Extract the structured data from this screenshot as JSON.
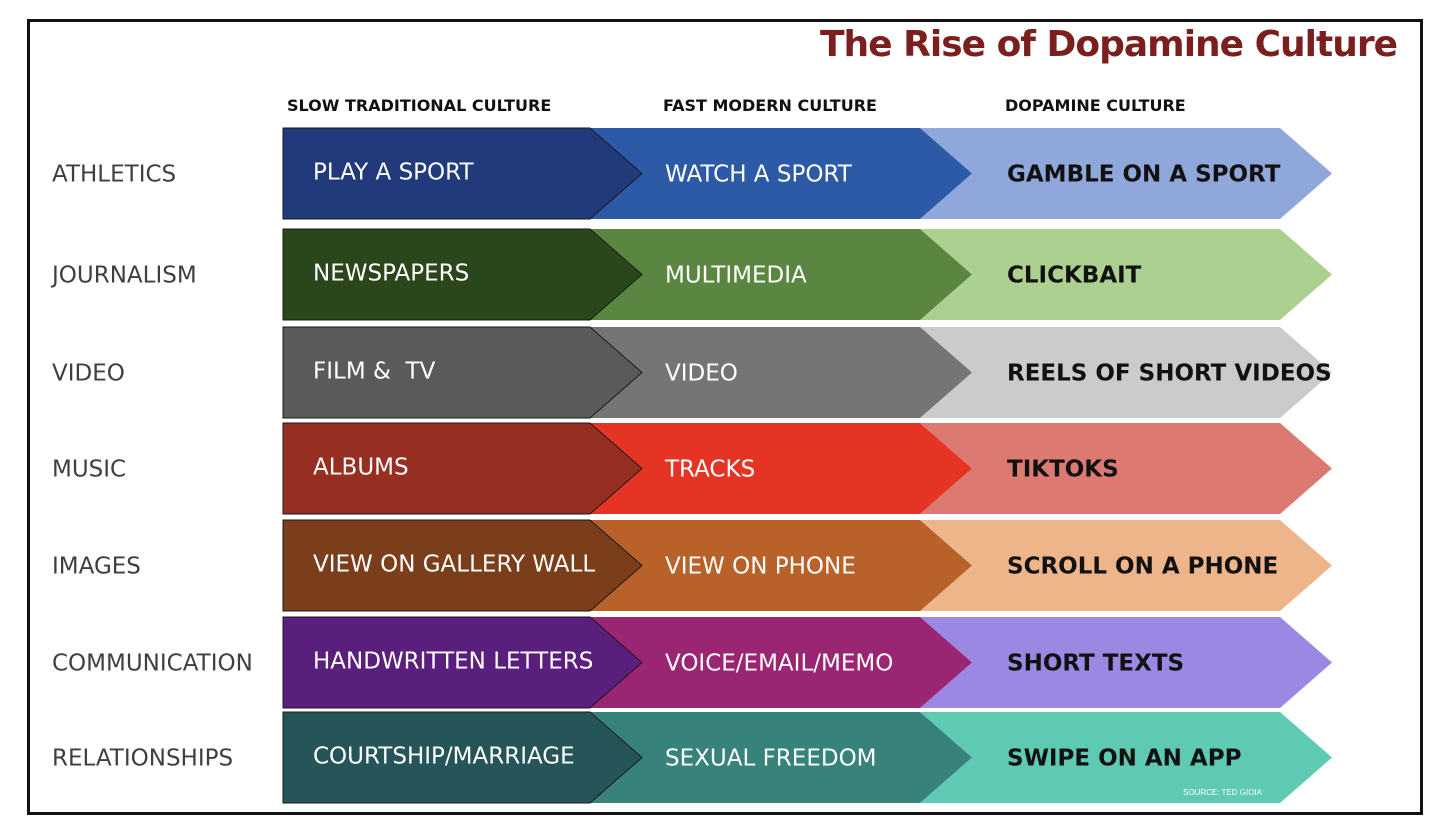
{
  "title": "The Rise of Dopamine Culture",
  "title_color": "#7a1e1e",
  "columns": [
    {
      "label": "SLOW TRADITIONAL CULTURE"
    },
    {
      "label": "FAST MODERN CULTURE"
    },
    {
      "label": "DOPAMINE CULTURE"
    }
  ],
  "rows": [
    {
      "category": "ATHLETICS",
      "cells": [
        {
          "text": "PLAY A SPORT",
          "fill": "#203a7c",
          "text_color": "#ffffff"
        },
        {
          "text": "WATCH A SPORT",
          "fill": "#2d5aa6",
          "text_color": "#ffffff"
        },
        {
          "text": "GAMBLE ON A SPORT",
          "fill": "#8fa7da",
          "text_color": "#111111"
        }
      ]
    },
    {
      "category": "JOURNALISM",
      "cells": [
        {
          "text": "NEWSPAPERS",
          "fill": "#2a471c",
          "text_color": "#ffffff"
        },
        {
          "text": "MULTIMEDIA",
          "fill": "#5a8642",
          "text_color": "#ffffff"
        },
        {
          "text": "CLICKBAIT",
          "fill": "#acd08f",
          "text_color": "#111111"
        }
      ]
    },
    {
      "category": "VIDEO",
      "cells": [
        {
          "text": "FILM &  TV",
          "fill": "#5a5a5a",
          "text_color": "#ffffff"
        },
        {
          "text": "VIDEO",
          "fill": "#767474",
          "text_color": "#ffffff"
        },
        {
          "text": "REELS OF SHORT VIDEOS",
          "fill": "#cbcbcb",
          "text_color": "#111111"
        }
      ]
    },
    {
      "category": "MUSIC",
      "cells": [
        {
          "text": "ALBUMS",
          "fill": "#962e22",
          "text_color": "#ffffff"
        },
        {
          "text": "TRACKS",
          "fill": "#e63424",
          "text_color": "#ffffff"
        },
        {
          "text": "TIKTOKS",
          "fill": "#dc7a72",
          "text_color": "#111111"
        }
      ]
    },
    {
      "category": "IMAGES",
      "cells": [
        {
          "text": "VIEW ON GALLERY WALL",
          "fill": "#7a3f1a",
          "text_color": "#ffffff"
        },
        {
          "text": "VIEW ON PHONE",
          "fill": "#b8622a",
          "text_color": "#ffffff"
        },
        {
          "text": "SCROLL ON A PHONE",
          "fill": "#eeb58b",
          "text_color": "#111111"
        }
      ]
    },
    {
      "category": "COMMUNICATION",
      "cells": [
        {
          "text": "HANDWRITTEN LETTERS",
          "fill": "#5a1f7c",
          "text_color": "#ffffff"
        },
        {
          "text": "VOICE/EMAIL/MEMO",
          "fill": "#9a2572",
          "text_color": "#ffffff"
        },
        {
          "text": "SHORT TEXTS",
          "fill": "#9a88e2",
          "text_color": "#111111"
        }
      ]
    },
    {
      "category": "RELATIONSHIPS",
      "cells": [
        {
          "text": "COURTSHIP/MARRIAGE",
          "fill": "#255559",
          "text_color": "#ffffff"
        },
        {
          "text": "SEXUAL FREEDOM",
          "fill": "#37827a",
          "text_color": "#ffffff"
        },
        {
          "text": "SWIPE ON AN APP",
          "fill": "#5ecab4",
          "text_color": "#111111"
        }
      ]
    }
  ],
  "source_note": "SOURCE: TED GIOIA",
  "source_color": "#ffffff"
}
